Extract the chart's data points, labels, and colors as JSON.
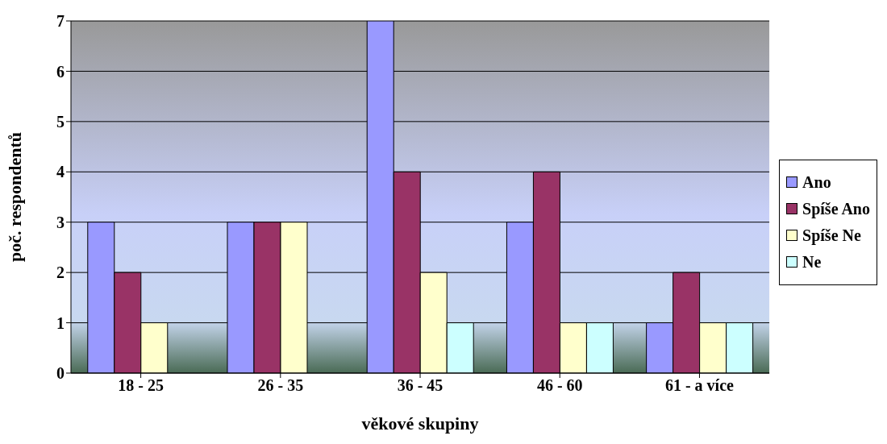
{
  "chart_data": {
    "type": "bar",
    "xlabel": "věkové skupiny",
    "ylabel": "poč. respondentů",
    "categories": [
      "18 - 25",
      "26 - 35",
      "36 - 45",
      "46 - 60",
      "61 - a více"
    ],
    "series": [
      {
        "name": "Ano",
        "color": "#9999ff",
        "values": [
          3,
          3,
          7,
          3,
          1
        ]
      },
      {
        "name": "Spíše Ano",
        "color": "#993366",
        "values": [
          2,
          3,
          4,
          4,
          2
        ]
      },
      {
        "name": "Spíše Ne",
        "color": "#ffffcc",
        "values": [
          1,
          3,
          2,
          1,
          1
        ]
      },
      {
        "name": "Ne",
        "color": "#ccffff",
        "values": [
          0,
          0,
          1,
          1,
          1
        ]
      }
    ],
    "ylim": [
      0,
      7
    ],
    "yticks": [
      0,
      1,
      2,
      3,
      4,
      5,
      6,
      7
    ],
    "grid": "y",
    "legend": "right"
  }
}
